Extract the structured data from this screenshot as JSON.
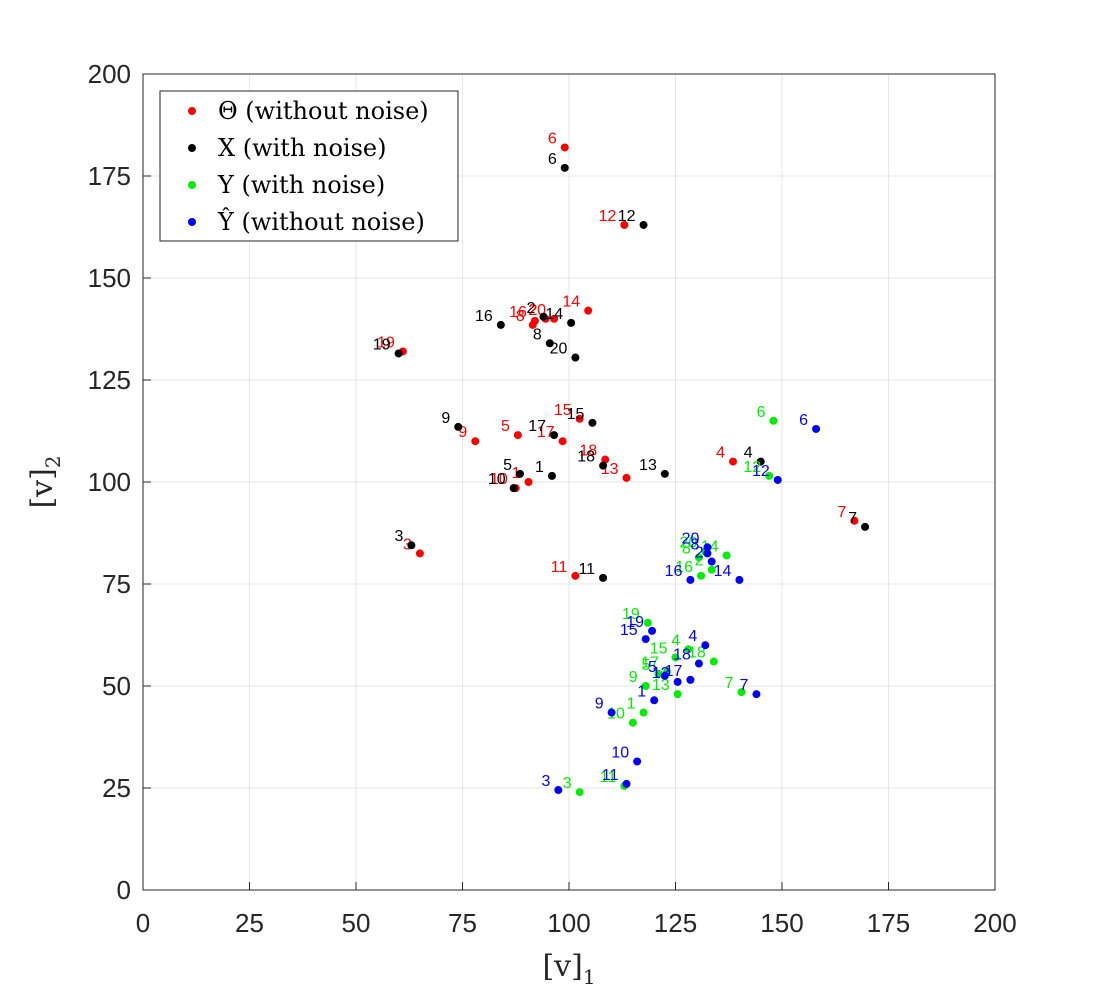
{
  "chart_data": {
    "type": "scatter",
    "xlabel": "[v]",
    "xlabel_sub": "1",
    "ylabel": "[v]",
    "ylabel_sub": "2",
    "xlim": [
      0,
      200
    ],
    "ylim": [
      0,
      200
    ],
    "xticks": [
      "0",
      "25",
      "50",
      "75",
      "100",
      "125",
      "150",
      "175",
      "200"
    ],
    "yticks": [
      "0",
      "25",
      "50",
      "75",
      "100",
      "125",
      "150",
      "175",
      "200"
    ],
    "grid": true,
    "legend_position": "top-left",
    "series": [
      {
        "name": "Θ (without noise)",
        "color": "#ff0000",
        "points": [
          {
            "label": "1",
            "x": 90.5,
            "y": 100
          },
          {
            "label": "2",
            "x": 94.5,
            "y": 140
          },
          {
            "label": "3",
            "x": 65,
            "y": 82.5
          },
          {
            "label": "4",
            "x": 138.5,
            "y": 105
          },
          {
            "label": "5",
            "x": 88,
            "y": 111.5
          },
          {
            "label": "6",
            "x": 99,
            "y": 182
          },
          {
            "label": "7",
            "x": 167,
            "y": 90.5
          },
          {
            "label": "8",
            "x": 91.5,
            "y": 138.5
          },
          {
            "label": "9",
            "x": 78,
            "y": 110
          },
          {
            "label": "10",
            "x": 87.5,
            "y": 98.5
          },
          {
            "label": "11",
            "x": 101.5,
            "y": 77
          },
          {
            "label": "12",
            "x": 113,
            "y": 163
          },
          {
            "label": "13",
            "x": 113.5,
            "y": 101
          },
          {
            "label": "14",
            "x": 104.5,
            "y": 142
          },
          {
            "label": "15",
            "x": 102.5,
            "y": 115.5
          },
          {
            "label": "16",
            "x": 92,
            "y": 139.5
          },
          {
            "label": "17",
            "x": 98.5,
            "y": 110
          },
          {
            "label": "18",
            "x": 108.5,
            "y": 105.5
          },
          {
            "label": "19",
            "x": 61,
            "y": 132
          },
          {
            "label": "20",
            "x": 96.5,
            "y": 140
          }
        ]
      },
      {
        "name": "X (with noise)",
        "color": "#000000",
        "points": [
          {
            "label": "1",
            "x": 96,
            "y": 101.5
          },
          {
            "label": "2",
            "x": 94,
            "y": 140.5
          },
          {
            "label": "3",
            "x": 63,
            "y": 84.5
          },
          {
            "label": "4",
            "x": 145,
            "y": 105
          },
          {
            "label": "5",
            "x": 88.5,
            "y": 102
          },
          {
            "label": "6",
            "x": 99,
            "y": 177
          },
          {
            "label": "7",
            "x": 169.5,
            "y": 89
          },
          {
            "label": "8",
            "x": 95.5,
            "y": 134
          },
          {
            "label": "9",
            "x": 74,
            "y": 113.5
          },
          {
            "label": "10",
            "x": 87,
            "y": 98.5
          },
          {
            "label": "11",
            "x": 108,
            "y": 76.5
          },
          {
            "label": "12",
            "x": 117.5,
            "y": 163
          },
          {
            "label": "13",
            "x": 122.5,
            "y": 102
          },
          {
            "label": "14",
            "x": 100.5,
            "y": 139
          },
          {
            "label": "15",
            "x": 105.5,
            "y": 114.5
          },
          {
            "label": "16",
            "x": 84,
            "y": 138.5
          },
          {
            "label": "17",
            "x": 96.5,
            "y": 111.5
          },
          {
            "label": "18",
            "x": 108,
            "y": 104
          },
          {
            "label": "19",
            "x": 60,
            "y": 131.5
          },
          {
            "label": "20",
            "x": 101.5,
            "y": 130.5
          }
        ]
      },
      {
        "name": "Y (with noise)",
        "color": "#00ee00",
        "points": [
          {
            "label": "1",
            "x": 117.5,
            "y": 43.5
          },
          {
            "label": "2",
            "x": 133.5,
            "y": 78.5
          },
          {
            "label": "3",
            "x": 102.5,
            "y": 24
          },
          {
            "label": "4",
            "x": 128,
            "y": 59
          },
          {
            "label": "5",
            "x": 121,
            "y": 53
          },
          {
            "label": "6",
            "x": 148,
            "y": 115
          },
          {
            "label": "7",
            "x": 140.5,
            "y": 48.5
          },
          {
            "label": "8",
            "x": 130.5,
            "y": 81.5
          },
          {
            "label": "9",
            "x": 118,
            "y": 50
          },
          {
            "label": "10",
            "x": 115,
            "y": 41
          },
          {
            "label": "11",
            "x": 113,
            "y": 25.5
          },
          {
            "label": "12",
            "x": 147,
            "y": 101.5
          },
          {
            "label": "13",
            "x": 125.5,
            "y": 48
          },
          {
            "label": "14",
            "x": 137,
            "y": 82
          },
          {
            "label": "15",
            "x": 125,
            "y": 57
          },
          {
            "label": "16",
            "x": 131,
            "y": 77
          },
          {
            "label": "17",
            "x": 123,
            "y": 53.5
          },
          {
            "label": "18",
            "x": 134,
            "y": 56
          },
          {
            "label": "19",
            "x": 118.5,
            "y": 65.5
          },
          {
            "label": "20",
            "x": 132,
            "y": 83
          }
        ]
      },
      {
        "name": "Ŷ (without noise)",
        "color": "#0000ff",
        "points": [
          {
            "label": "1",
            "x": 120,
            "y": 46.5
          },
          {
            "label": "2",
            "x": 133.5,
            "y": 80.5
          },
          {
            "label": "3",
            "x": 97.5,
            "y": 24.5
          },
          {
            "label": "4",
            "x": 132,
            "y": 60
          },
          {
            "label": "5",
            "x": 122.5,
            "y": 52.5
          },
          {
            "label": "6",
            "x": 158,
            "y": 113
          },
          {
            "label": "7",
            "x": 144,
            "y": 48
          },
          {
            "label": "8",
            "x": 132.5,
            "y": 82.5
          },
          {
            "label": "9",
            "x": 110,
            "y": 43.5
          },
          {
            "label": "10",
            "x": 116,
            "y": 31.5
          },
          {
            "label": "11",
            "x": 113.5,
            "y": 26
          },
          {
            "label": "12",
            "x": 149,
            "y": 100.5
          },
          {
            "label": "13",
            "x": 125.5,
            "y": 51
          },
          {
            "label": "14",
            "x": 140,
            "y": 76
          },
          {
            "label": "15",
            "x": 118,
            "y": 61.5
          },
          {
            "label": "16",
            "x": 128.5,
            "y": 76
          },
          {
            "label": "17",
            "x": 128.5,
            "y": 51.5
          },
          {
            "label": "18",
            "x": 130.5,
            "y": 55.5
          },
          {
            "label": "19",
            "x": 119.5,
            "y": 63.5
          },
          {
            "label": "20",
            "x": 132.5,
            "y": 84
          }
        ]
      }
    ]
  }
}
